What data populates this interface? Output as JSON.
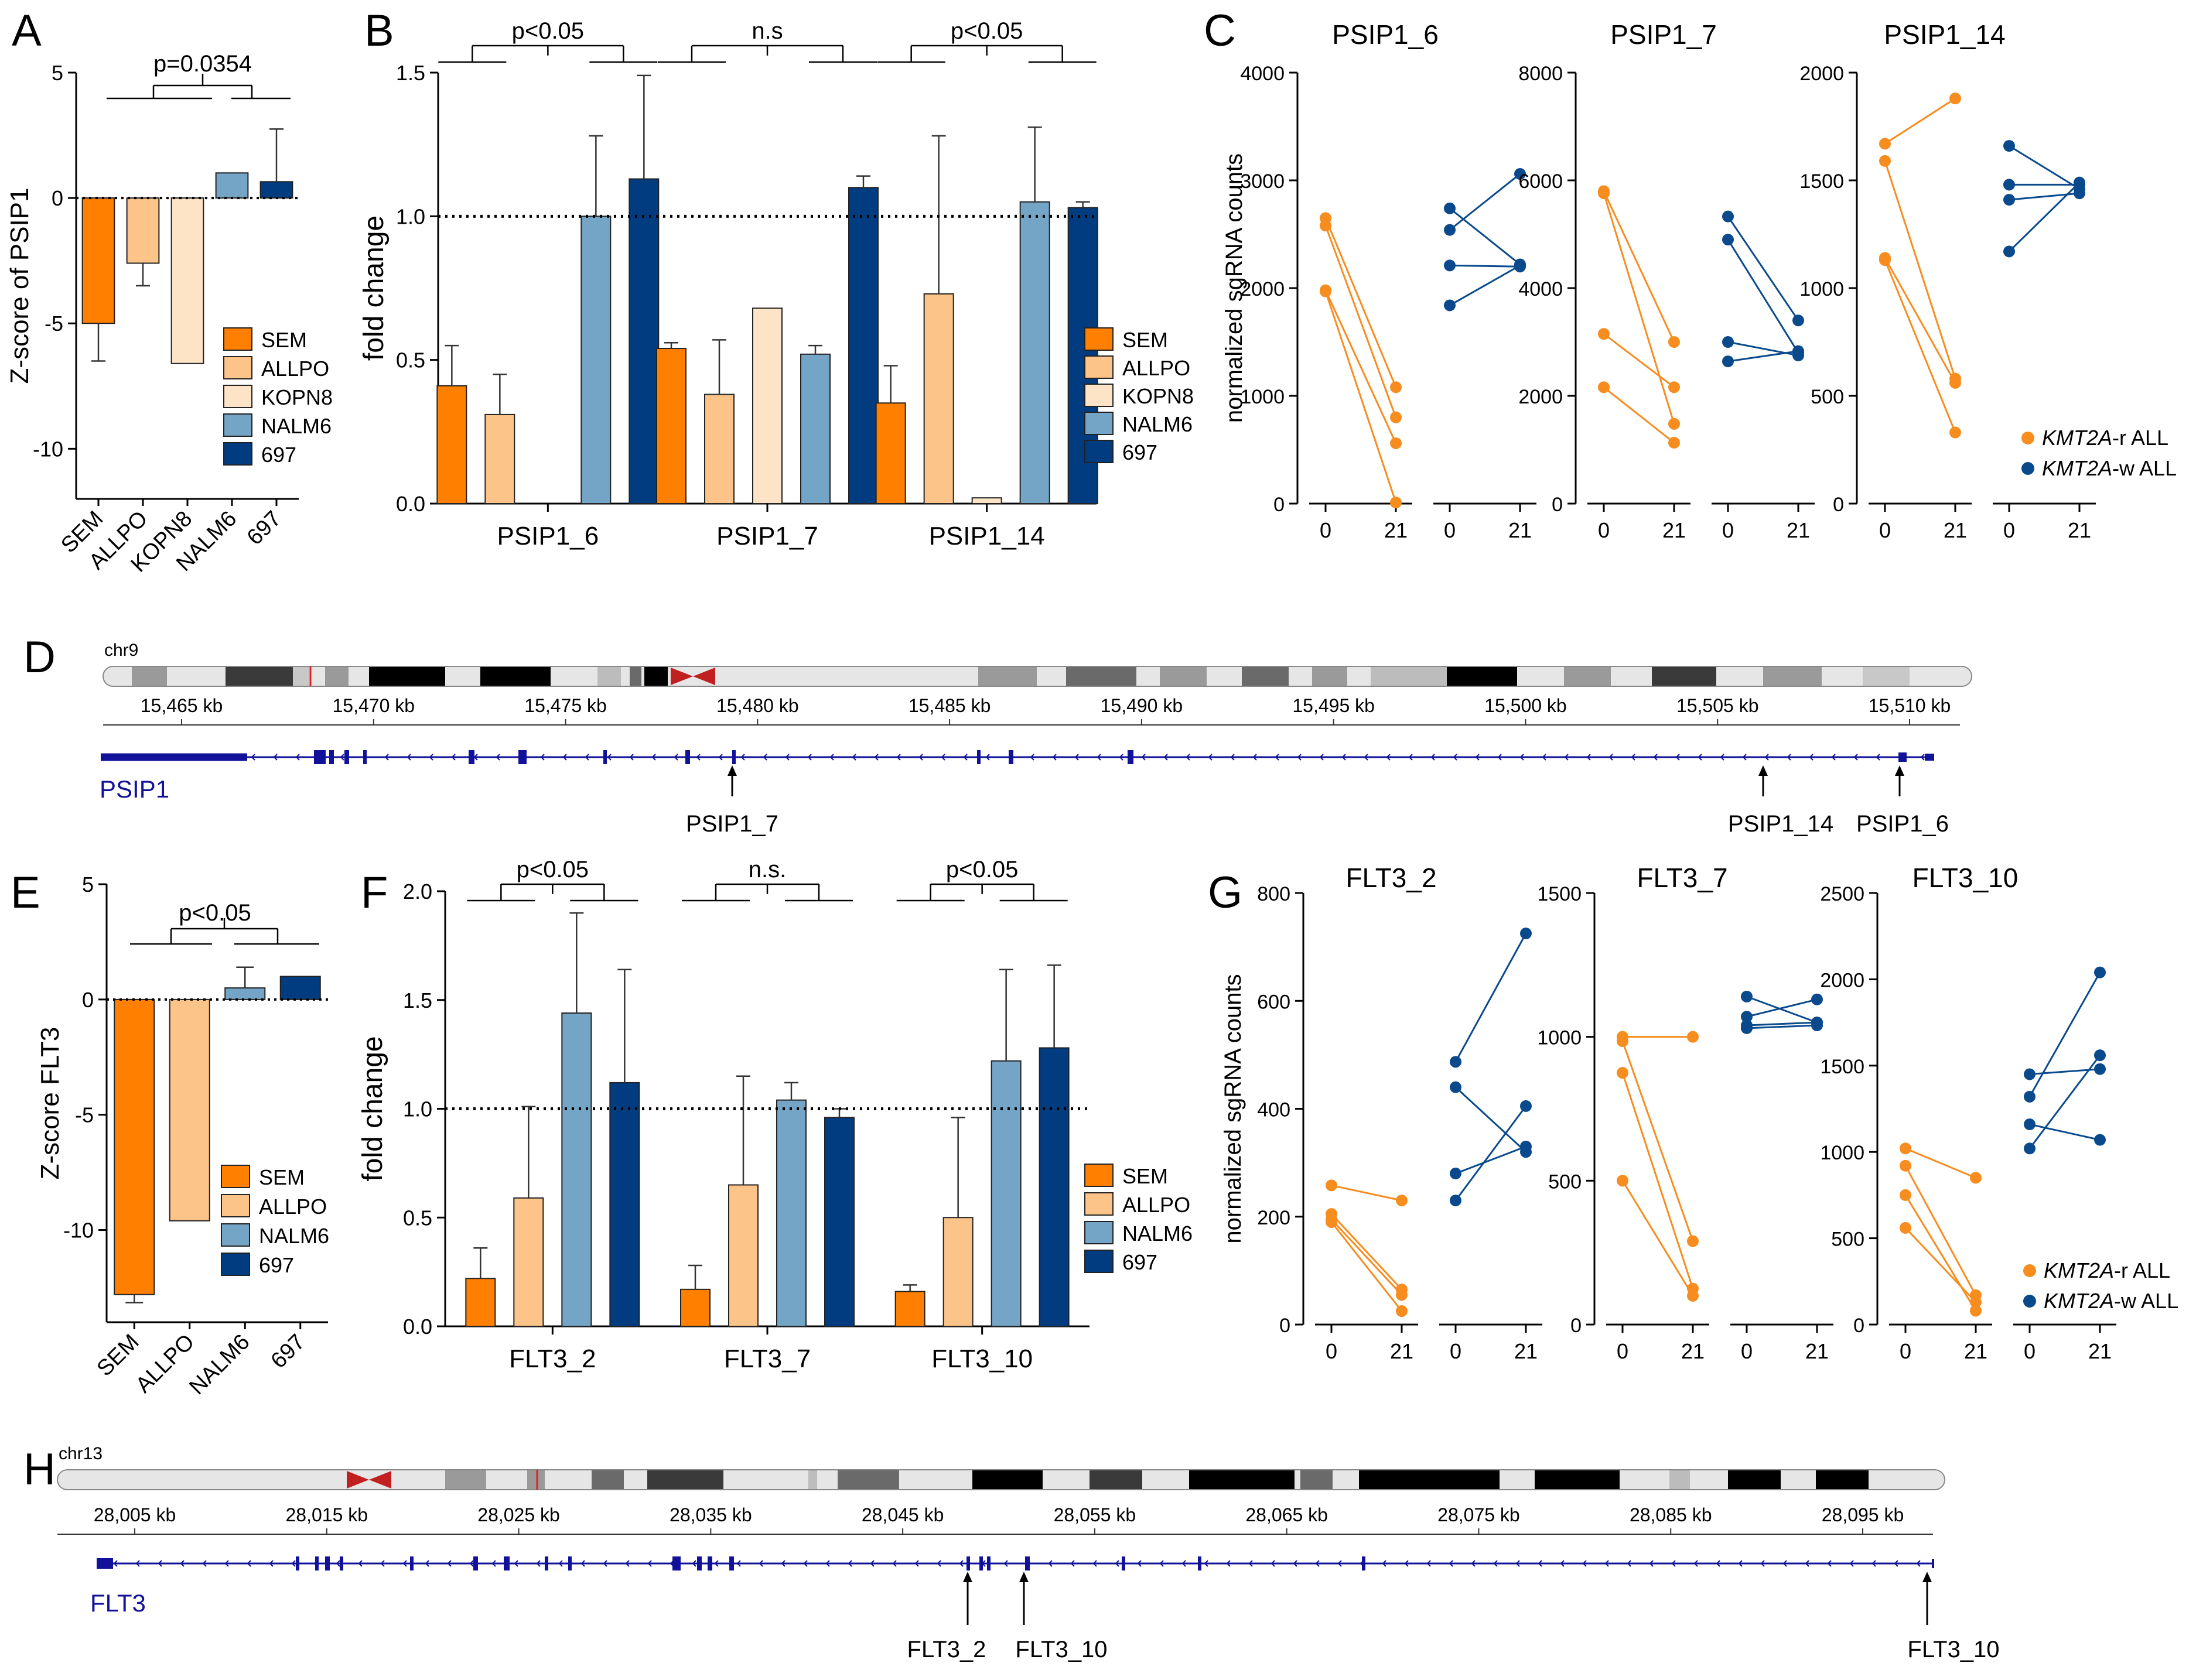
{
  "colors": {
    "SEM": "#ff7f00",
    "ALLPO": "#fdc48a",
    "KOPN8": "#fde4c6",
    "NALM6": "#74a5c6",
    "697": "#013c80",
    "rDot": "#f78c1f",
    "wDot": "#0a4a8c",
    "track": "#111199"
  },
  "panelA": {
    "letter": "A",
    "ylabel": "Z-score of PSIP1",
    "ylim": [
      -12,
      5
    ],
    "ticks": [
      5,
      0,
      -5,
      -10
    ],
    "categories": [
      "SEM",
      "ALLPO",
      "KOPN8",
      "NALM6",
      "697"
    ],
    "values": [
      -5.0,
      -2.6,
      -6.6,
      1.0,
      0.65
    ],
    "errors": [
      1.5,
      0.9,
      0.0,
      0.0,
      2.1
    ],
    "sig": "p=0.0354",
    "legend": [
      "SEM",
      "ALLPO",
      "KOPN8",
      "NALM6",
      "697"
    ]
  },
  "panelB": {
    "letter": "B",
    "ylabel": "fold change",
    "ylim": [
      0,
      1.5
    ],
    "ticks": [
      "0.0",
      "0.5",
      "1.0",
      "1.5"
    ],
    "groups": [
      "PSIP1_6",
      "PSIP1_7",
      "PSIP1_14"
    ],
    "series": [
      {
        "name": "SEM",
        "values": [
          0.41,
          0.54,
          0.35
        ],
        "errors": [
          0.14,
          0.02,
          0.13
        ]
      },
      {
        "name": "ALLPO",
        "values": [
          0.31,
          0.38,
          0.73
        ],
        "errors": [
          0.14,
          0.19,
          0.55
        ]
      },
      {
        "name": "KOPN8",
        "values": [
          0.0,
          0.68,
          0.02
        ],
        "errors": [
          0,
          0,
          0
        ]
      },
      {
        "name": "NALM6",
        "values": [
          1.0,
          0.52,
          1.05
        ],
        "errors": [
          0.28,
          0.03,
          0.26
        ]
      },
      {
        "name": "697",
        "values": [
          1.13,
          1.1,
          1.03
        ],
        "errors": [
          0.36,
          0.04,
          0.02
        ]
      }
    ],
    "reference": 1.0,
    "sigs": [
      "p<0.05",
      "n.s",
      "p<0.05"
    ],
    "legend": [
      "SEM",
      "ALLPO",
      "KOPN8",
      "NALM6",
      "697"
    ]
  },
  "panelC": {
    "letter": "C",
    "ylabel": "normalized sgRNA counts",
    "xticks": [
      "0",
      "21",
      "0",
      "21"
    ],
    "legend": [
      {
        "italic": "KMT2A",
        "rest": "-r  ALL"
      },
      {
        "italic": "KMT2A",
        "rest": "-w  ALL"
      }
    ],
    "plots": [
      {
        "title": "PSIP1_6",
        "ymax": 4000,
        "ticks": [
          "0",
          "1000",
          "2000",
          "3000",
          "4000"
        ],
        "r": [
          [
            2650,
            1080
          ],
          [
            2580,
            800
          ],
          [
            1980,
            560
          ],
          [
            1970,
            10
          ]
        ],
        "w": [
          [
            2740,
            2220
          ],
          [
            2540,
            3060
          ],
          [
            2210,
            2200
          ],
          [
            1840,
            2210
          ]
        ]
      },
      {
        "title": "PSIP1_7",
        "ymax": 8000,
        "ticks": [
          "0",
          "2000",
          "4000",
          "6000",
          "8000"
        ],
        "r": [
          [
            5800,
            3000
          ],
          [
            5760,
            1480
          ],
          [
            3150,
            2160
          ],
          [
            2160,
            1130
          ]
        ],
        "w": [
          [
            5330,
            3400
          ],
          [
            4900,
            2800
          ],
          [
            3000,
            2750
          ],
          [
            2640,
            2830
          ]
        ]
      },
      {
        "title": "PSIP1_14",
        "ymax": 2000,
        "ticks": [
          "0",
          "500",
          "1000",
          "1500",
          "2000"
        ],
        "r": [
          [
            1670,
            1880
          ],
          [
            1590,
            580
          ],
          [
            1140,
            560
          ],
          [
            1130,
            330
          ]
        ],
        "w": [
          [
            1660,
            1460
          ],
          [
            1480,
            1480
          ],
          [
            1410,
            1440
          ],
          [
            1170,
            1490
          ]
        ]
      }
    ]
  },
  "panelD": {
    "letter": "D",
    "chrom": "chr9",
    "gene": "PSIP1",
    "coords": [
      "15,465 kb",
      "15,470 kb",
      "15,475 kb",
      "15,480 kb",
      "15,485 kb",
      "15,490 kb",
      "15,495 kb",
      "15,500 kb",
      "15,505 kb",
      "15,510 kb"
    ],
    "guides": [
      "PSIP1_7",
      "PSIP1_14",
      "PSIP1_6"
    ]
  },
  "panelE": {
    "letter": "E",
    "ylabel": "Z-score FLT3",
    "ylim": [
      -14,
      5
    ],
    "ticks": [
      5,
      0,
      -5,
      -10
    ],
    "categories": [
      "SEM",
      "ALLPO",
      "NALM6",
      "697"
    ],
    "values": [
      -12.8,
      -9.6,
      0.5,
      1.0
    ],
    "errors": [
      0.35,
      0,
      0.9,
      0
    ],
    "sig": "p<0.05",
    "legend": [
      "SEM",
      "ALLPO",
      "NALM6",
      "697"
    ]
  },
  "panelF": {
    "letter": "F",
    "ylabel": "fold change",
    "ylim": [
      0,
      2.0
    ],
    "ticks": [
      "0.0",
      "0.5",
      "1.0",
      "1.5",
      "2.0"
    ],
    "groups": [
      "FLT3_2",
      "FLT3_7",
      "FLT3_10"
    ],
    "series": [
      {
        "name": "SEM",
        "values": [
          0.22,
          0.17,
          0.16
        ],
        "errors": [
          0.14,
          0.11,
          0.03
        ]
      },
      {
        "name": "ALLPO",
        "values": [
          0.59,
          0.65,
          0.5
        ],
        "errors": [
          0.42,
          0.5,
          0.46
        ]
      },
      {
        "name": "NALM6",
        "values": [
          1.44,
          1.04,
          1.22
        ],
        "errors": [
          0.46,
          0.08,
          0.42
        ]
      },
      {
        "name": "697",
        "values": [
          1.12,
          0.96,
          1.28
        ],
        "errors": [
          0.52,
          0.04,
          0.38
        ]
      }
    ],
    "reference": 1.0,
    "sigs": [
      "p<0.05",
      "n.s.",
      "p<0.05"
    ],
    "legend": [
      "SEM",
      "ALLPO",
      "NALM6",
      "697"
    ]
  },
  "panelG": {
    "letter": "G",
    "ylabel": "normalized sgRNA counts",
    "xticks": [
      "0",
      "21",
      "0",
      "21"
    ],
    "legend": [
      {
        "italic": "KMT2A",
        "rest": "-r  ALL"
      },
      {
        "italic": "KMT2A",
        "rest": "-w  ALL"
      }
    ],
    "plots": [
      {
        "title": "FLT3_2",
        "ymax": 800,
        "ticks": [
          "0",
          "200",
          "400",
          "600",
          "800"
        ],
        "r": [
          [
            258,
            230
          ],
          [
            205,
            65
          ],
          [
            195,
            55
          ],
          [
            190,
            25
          ]
        ],
        "w": [
          [
            487,
            725
          ],
          [
            440,
            320
          ],
          [
            280,
            330
          ],
          [
            230,
            405
          ]
        ]
      },
      {
        "title": "FLT3_7",
        "ymax": 1500,
        "ticks": [
          "0",
          "500",
          "1000",
          "1500"
        ],
        "r": [
          [
            1000,
            1000
          ],
          [
            985,
            290
          ],
          [
            875,
            125
          ],
          [
            500,
            100
          ]
        ],
        "w": [
          [
            1140,
            1050
          ],
          [
            1070,
            1130
          ],
          [
            1040,
            1050
          ],
          [
            1030,
            1040
          ]
        ]
      },
      {
        "title": "FLT3_10",
        "ymax": 2500,
        "ticks": [
          "0",
          "500",
          "1000",
          "1500",
          "2000",
          "2500"
        ],
        "r": [
          [
            1020,
            850
          ],
          [
            920,
            170
          ],
          [
            750,
            80
          ],
          [
            560,
            130
          ]
        ],
        "w": [
          [
            1450,
            1480
          ],
          [
            1320,
            2040
          ],
          [
            1160,
            1070
          ],
          [
            1020,
            1560
          ]
        ]
      }
    ]
  },
  "panelH": {
    "letter": "H",
    "chrom": "chr13",
    "gene": "FLT3",
    "coords": [
      "28,005 kb",
      "28,015 kb",
      "28,025 kb",
      "28,035 kb",
      "28,045 kb",
      "28,055 kb",
      "28,065 kb",
      "28,075 kb",
      "28,085 kb",
      "28,095 kb"
    ],
    "guides": [
      "FLT3_2",
      "FLT3_10",
      "FLT3_10"
    ]
  }
}
